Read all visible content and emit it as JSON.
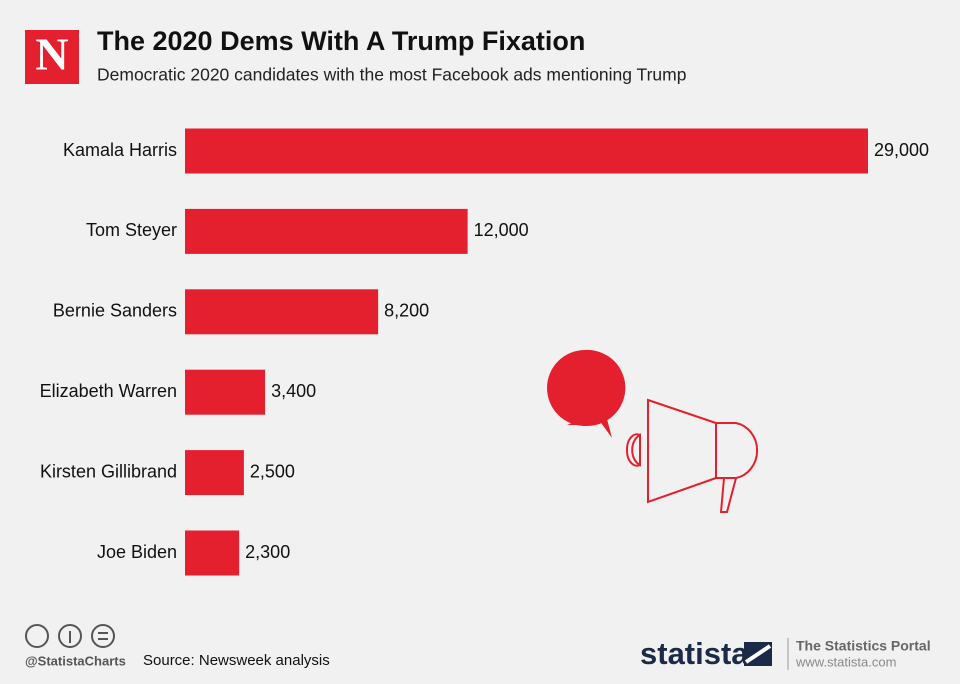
{
  "chart_data": {
    "type": "bar",
    "orientation": "horizontal",
    "title": "The 2020 Dems With A Trump Fixation",
    "subtitle": "Democratic 2020 candidates with the most Facebook ads mentioning Trump",
    "categories": [
      "Kamala Harris",
      "Tom Steyer",
      "Bernie Sanders",
      "Elizabeth Warren",
      "Kirsten Gillibrand",
      "Joe Biden"
    ],
    "values": [
      29000,
      12000,
      8200,
      3400,
      2500,
      2300
    ],
    "value_labels": [
      "29,000",
      "12,000",
      "8,200",
      "3,400",
      "2,500",
      "2,300"
    ],
    "color": "#e5202e",
    "source": "Source: Newsweek analysis"
  },
  "logo": "N",
  "footer": {
    "handle": "@StatistaCharts",
    "brand": "statista",
    "portal": "The Statistics Portal",
    "url": "www.statista.com"
  }
}
